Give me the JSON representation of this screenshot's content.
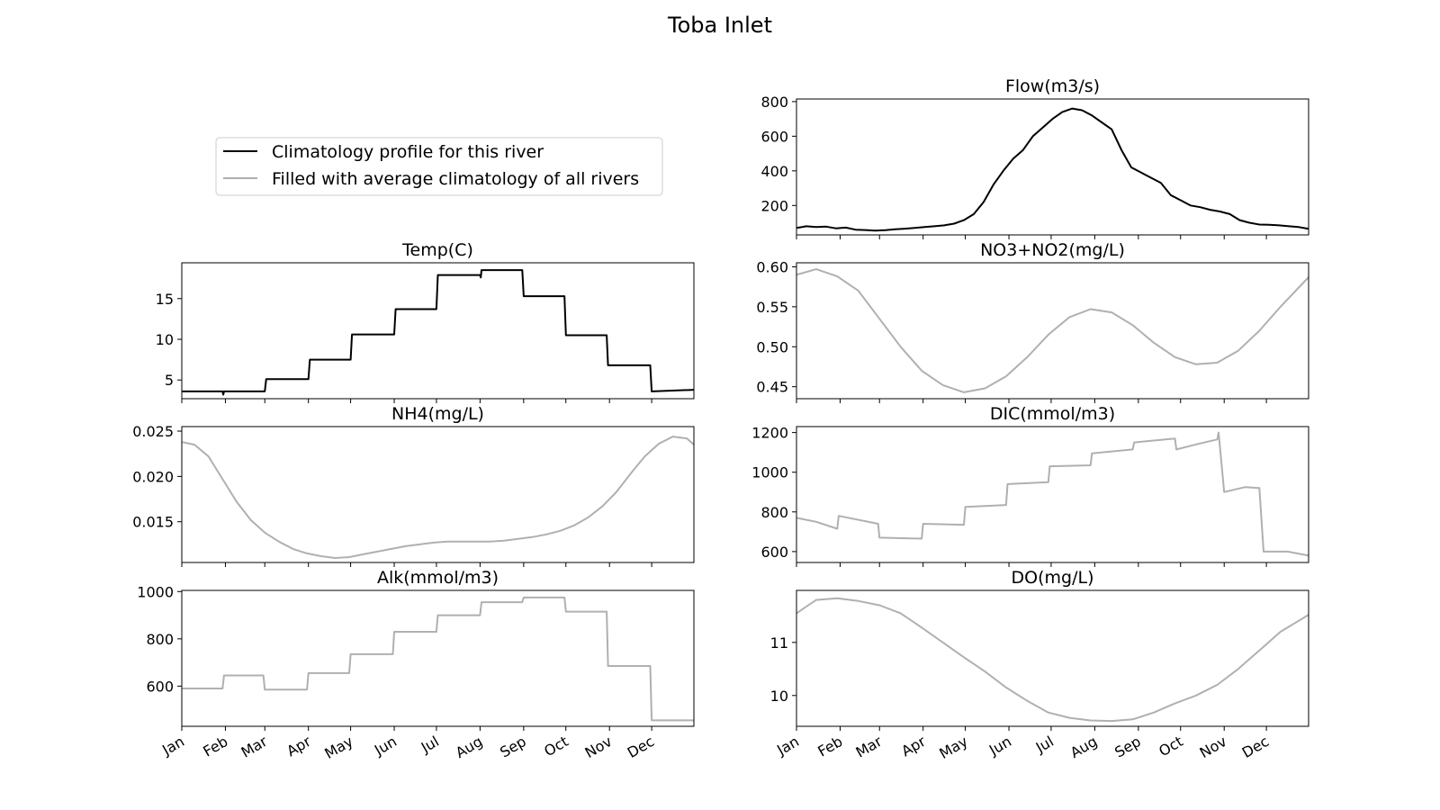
{
  "figure": {
    "title": "Toba Inlet"
  },
  "legend": {
    "placement": "upper-left",
    "entries": [
      {
        "label": "Climatology profile for this river",
        "color": "#000000"
      },
      {
        "label": "Filled with average climatology of all rivers",
        "color": "#b0b0b0"
      }
    ]
  },
  "months": [
    "Jan",
    "Feb",
    "Mar",
    "Apr",
    "May",
    "Jun",
    "Jul",
    "Aug",
    "Sep",
    "Oct",
    "Nov",
    "Dec"
  ],
  "chart_data": [
    {
      "type": "line",
      "title": "Flow(m3/s)",
      "position": "right-row1",
      "color": "#000000",
      "xlim": [
        1,
        365
      ],
      "ylim": [
        30,
        815
      ],
      "yticks": [
        200,
        400,
        600,
        800
      ],
      "ytick_labels": [
        "200",
        "400",
        "600",
        "800"
      ],
      "series": [
        {
          "x": [
            1,
            8,
            15,
            22,
            29,
            36,
            43,
            50,
            57,
            64,
            71,
            78,
            85,
            92,
            99,
            106,
            113,
            120,
            127,
            134,
            141,
            148,
            155,
            162,
            169,
            176,
            183,
            190,
            197,
            204,
            211,
            218,
            225,
            232,
            239,
            246,
            253,
            260,
            267,
            274,
            281,
            288,
            295,
            302,
            309,
            316,
            323,
            330,
            337,
            344,
            351,
            358,
            365
          ],
          "y": [
            70,
            80,
            75,
            78,
            68,
            72,
            60,
            58,
            55,
            57,
            62,
            66,
            70,
            75,
            80,
            85,
            95,
            115,
            150,
            220,
            320,
            400,
            470,
            520,
            600,
            650,
            700,
            740,
            760,
            750,
            720,
            680,
            640,
            520,
            420,
            390,
            360,
            330,
            260,
            230,
            200,
            190,
            175,
            165,
            150,
            115,
            100,
            90,
            88,
            85,
            80,
            75,
            65
          ]
        }
      ]
    },
    {
      "type": "line",
      "title": "Temp(C)",
      "position": "left-row2",
      "color": "#000000",
      "xlim": [
        1,
        365
      ],
      "ylim": [
        2.7,
        19.4
      ],
      "yticks": [
        5,
        10,
        15
      ],
      "ytick_labels": [
        "5",
        "10",
        "15"
      ],
      "series": [
        {
          "x": [
            1,
            30,
            30.5,
            31,
            31.5,
            60,
            61,
            91,
            92,
            121,
            122,
            152,
            153,
            182,
            183,
            213,
            213.5,
            214,
            243,
            244,
            273,
            274,
            303,
            304,
            334,
            335,
            365
          ],
          "y": [
            3.6,
            3.6,
            3.2,
            3.6,
            3.6,
            3.6,
            5.1,
            5.1,
            7.5,
            7.5,
            10.6,
            10.6,
            13.7,
            13.7,
            17.9,
            17.9,
            17.6,
            18.5,
            18.5,
            15.3,
            15.3,
            10.5,
            10.5,
            6.8,
            6.8,
            3.6,
            3.8
          ]
        }
      ]
    },
    {
      "type": "line",
      "title": "NO3+NO2(mg/L)",
      "position": "right-row2",
      "color": "#b0b0b0",
      "xlim": [
        1,
        365
      ],
      "ylim": [
        0.435,
        0.605
      ],
      "yticks": [
        0.45,
        0.5,
        0.55,
        0.6
      ],
      "ytick_labels": [
        "0.45",
        "0.50",
        "0.55",
        "0.60"
      ],
      "series": [
        {
          "x": [
            1,
            15,
            30,
            45,
            60,
            75,
            90,
            105,
            120,
            135,
            150,
            165,
            180,
            195,
            210,
            225,
            240,
            255,
            270,
            285,
            300,
            315,
            330,
            345,
            365
          ],
          "y": [
            0.59,
            0.597,
            0.588,
            0.57,
            0.535,
            0.5,
            0.47,
            0.452,
            0.443,
            0.448,
            0.463,
            0.487,
            0.515,
            0.537,
            0.547,
            0.543,
            0.527,
            0.505,
            0.487,
            0.478,
            0.48,
            0.495,
            0.52,
            0.55,
            0.587
          ]
        }
      ]
    },
    {
      "type": "line",
      "title": "NH4(mg/L)",
      "position": "left-row3",
      "color": "#b0b0b0",
      "xlim": [
        1,
        365
      ],
      "ylim": [
        0.0105,
        0.0255
      ],
      "yticks": [
        0.015,
        0.02,
        0.025
      ],
      "ytick_labels": [
        "0.015",
        "0.020",
        "0.025"
      ],
      "series": [
        {
          "x": [
            1,
            10,
            20,
            30,
            40,
            50,
            60,
            70,
            80,
            90,
            100,
            110,
            120,
            130,
            140,
            150,
            160,
            170,
            180,
            190,
            200,
            210,
            220,
            230,
            240,
            250,
            260,
            270,
            280,
            290,
            300,
            310,
            320,
            330,
            340,
            350,
            360,
            365
          ],
          "y": [
            0.0238,
            0.0235,
            0.0222,
            0.0197,
            0.0172,
            0.0152,
            0.0138,
            0.0128,
            0.012,
            0.0115,
            0.0112,
            0.011,
            0.0111,
            0.0114,
            0.0117,
            0.012,
            0.0123,
            0.0125,
            0.0127,
            0.0128,
            0.0128,
            0.0128,
            0.0128,
            0.0129,
            0.0131,
            0.0133,
            0.0136,
            0.014,
            0.0146,
            0.0155,
            0.0167,
            0.0183,
            0.0203,
            0.0222,
            0.0236,
            0.0244,
            0.0242,
            0.0235
          ]
        }
      ]
    },
    {
      "type": "line",
      "title": "DIC(mmol/m3)",
      "position": "right-row3",
      "color": "#b0b0b0",
      "xlim": [
        1,
        365
      ],
      "ylim": [
        545,
        1230
      ],
      "yticks": [
        600,
        800,
        1000,
        1200
      ],
      "ytick_labels": [
        "600",
        "800",
        "1000",
        "1200"
      ],
      "series": [
        {
          "x": [
            1,
            15,
            30,
            31,
            59,
            60,
            90,
            91,
            120,
            121,
            150,
            151,
            180,
            181,
            210,
            211,
            240,
            241,
            270,
            271,
            285,
            300,
            301,
            305,
            320,
            330,
            333,
            335,
            350,
            365
          ],
          "y": [
            770,
            750,
            715,
            780,
            740,
            670,
            665,
            740,
            735,
            825,
            835,
            940,
            950,
            1030,
            1035,
            1095,
            1115,
            1150,
            1170,
            1115,
            1140,
            1165,
            1200,
            900,
            925,
            920,
            600,
            600,
            600,
            580
          ]
        }
      ]
    },
    {
      "type": "line",
      "title": "Alk(mmol/m3)",
      "position": "left-row4",
      "color": "#b0b0b0",
      "xlim": [
        1,
        365
      ],
      "ylim": [
        430,
        1005
      ],
      "yticks": [
        600,
        800,
        1000
      ],
      "ytick_labels": [
        "600",
        "800",
        "1000"
      ],
      "series": [
        {
          "x": [
            1,
            30,
            31,
            59,
            60,
            90,
            91,
            120,
            121,
            151,
            152,
            182,
            183,
            213,
            214,
            243,
            244,
            273,
            274,
            303,
            304,
            334,
            335,
            365
          ],
          "y": [
            590,
            590,
            645,
            645,
            585,
            585,
            655,
            655,
            735,
            735,
            830,
            830,
            900,
            900,
            955,
            955,
            975,
            975,
            915,
            915,
            685,
            685,
            455,
            455
          ]
        }
      ]
    },
    {
      "type": "line",
      "title": "DO(mg/L)",
      "position": "right-row4",
      "color": "#b0b0b0",
      "xlim": [
        1,
        365
      ],
      "ylim": [
        9.42,
        11.98
      ],
      "yticks": [
        10,
        11
      ],
      "ytick_labels": [
        "10",
        "11"
      ],
      "series": [
        {
          "x": [
            1,
            15,
            30,
            45,
            60,
            75,
            90,
            105,
            120,
            135,
            150,
            165,
            180,
            195,
            210,
            225,
            240,
            255,
            270,
            285,
            300,
            315,
            330,
            345,
            365
          ],
          "y": [
            11.55,
            11.8,
            11.83,
            11.78,
            11.7,
            11.55,
            11.28,
            11.0,
            10.72,
            10.45,
            10.15,
            9.9,
            9.68,
            9.58,
            9.53,
            9.52,
            9.55,
            9.68,
            9.85,
            10.0,
            10.2,
            10.5,
            10.85,
            11.2,
            11.52
          ]
        }
      ]
    }
  ]
}
